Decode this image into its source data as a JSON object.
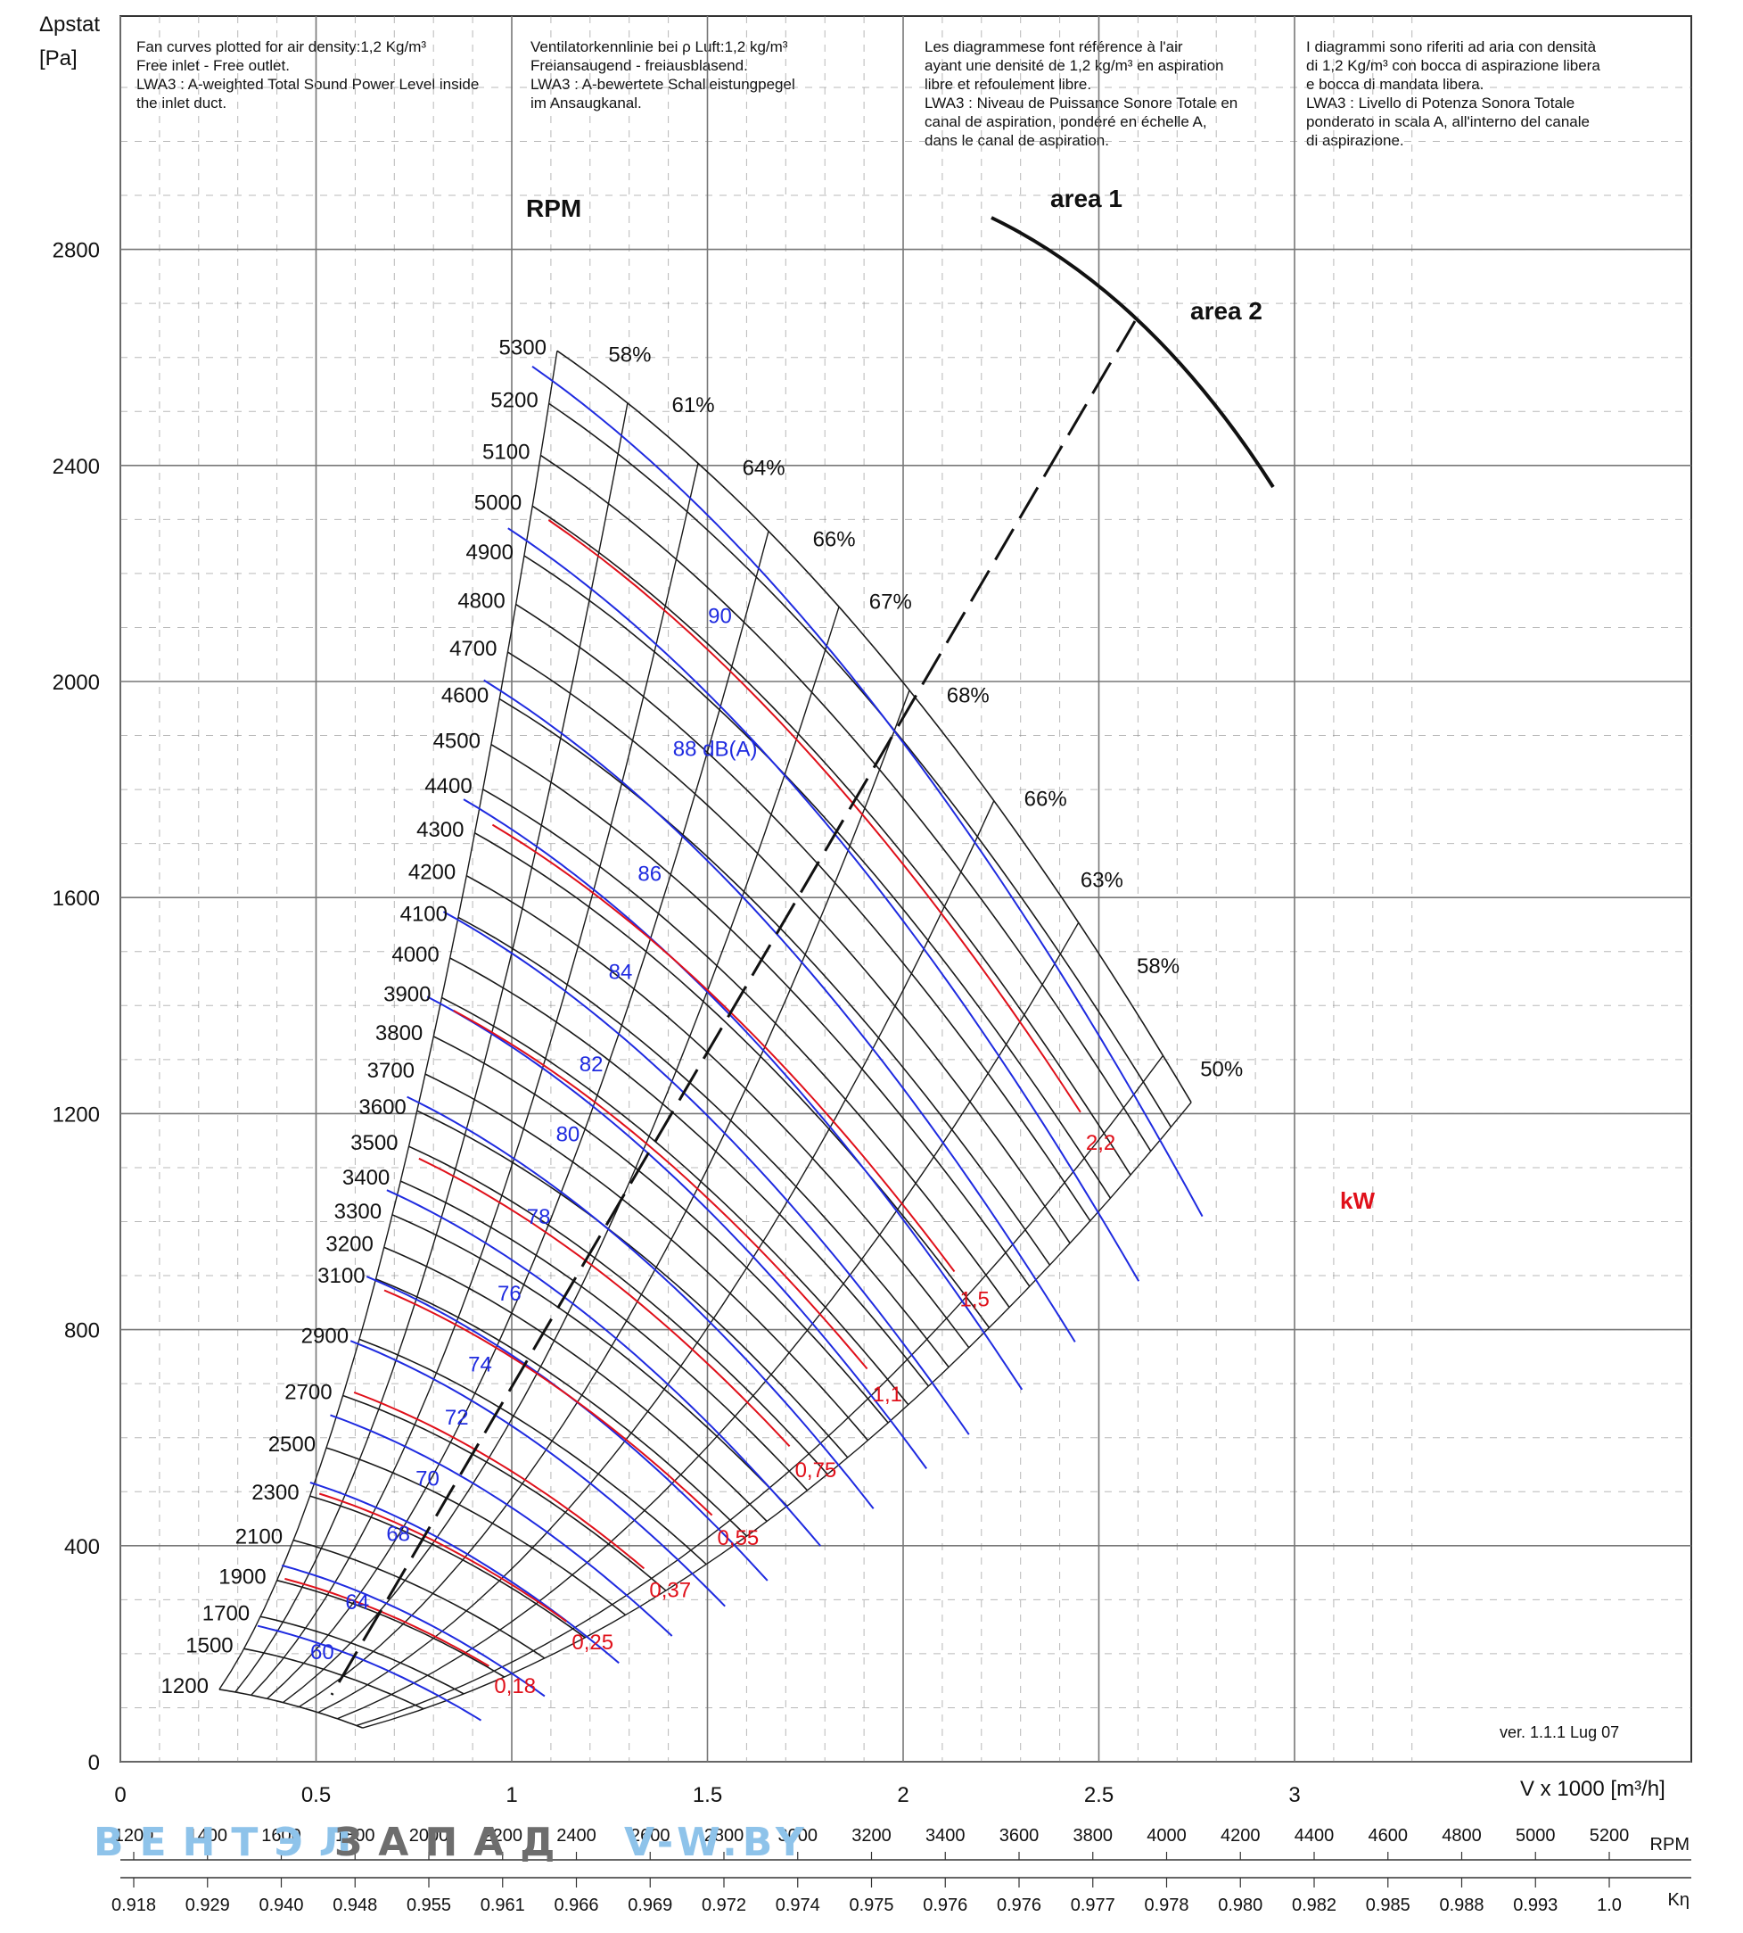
{
  "header": {
    "yaxis_title_line1": "Δpstat",
    "yaxis_title_line2": "[Pa]",
    "notes": [
      "Fan curves plotted for air density:1,2 Kg/m³\nFree inlet - Free outlet.\nLWA3 : A-weighted Total Sound Power Level inside\nthe inlet duct.",
      "Ventilatorkennlinie bei ρ Luft:1,2 kg/m³\nFreiansaugend - freiausblasend.\nLWA3 : A-bewertete Schalleistungpegel\nim Ansaugkanal.",
      "Les diagrammese font référence à l'air\nayant une densité de 1,2 kg/m³ en aspiration\nlibre et refoulement libre.\nLWA3 : Niveau de Puissance Sonore Totale en\ncanal de aspiration, pondéré en échelle A,\ndans le canal de aspiration.",
      "I diagrammi sono riferiti ad aria con densità\ndi 1,2 Kg/m³ con bocca di aspirazione libera\ne bocca di mandata libera.\nLWA3 : Livello di Potenza Sonora Totale\nponderato in scala A, all'interno del canale\ndi aspirazione."
    ],
    "version": "ver. 1.1.1 Lug 07",
    "xaxis_title": "V x 1000 [m³/h]"
  },
  "colors": {
    "rpm_curves": "#1a1a1a",
    "efficiency_rays": "#1a1a1a",
    "sound_curves": "#1f2be0",
    "power_curves": "#e0101a",
    "grid": "#8a8a8a",
    "watermark_light": "#8ec3ea",
    "watermark_dark": "#6d6d6d"
  },
  "chart_data": {
    "type": "line",
    "xlabel": "V x 1000 [m³/h]",
    "ylabel": "Δpstat [Pa]",
    "xlim": [
      0,
      3.35
    ],
    "ylim": [
      0,
      3200
    ],
    "x_ticks": [
      "0",
      "0.5",
      "1",
      "1.5",
      "2",
      "2.5",
      "3"
    ],
    "y_ticks": [
      "0",
      "400",
      "800",
      "1200",
      "1600",
      "2000",
      "2400",
      "2800"
    ],
    "grid": true,
    "rpm_label": "RPM",
    "rpm_curves": [
      1200,
      1500,
      1700,
      1900,
      2100,
      2300,
      2500,
      2700,
      2900,
      3100,
      3200,
      3300,
      3400,
      3500,
      3600,
      3700,
      3800,
      3900,
      4000,
      4100,
      4200,
      4300,
      4400,
      4500,
      4600,
      4700,
      4800,
      4900,
      5000,
      5100,
      5200,
      5300
    ],
    "efficiency_labels": [
      "58%",
      "61%",
      "64%",
      "66%",
      "67%",
      "68%",
      "66%",
      "63%",
      "58%",
      "50%"
    ],
    "sound_levels_label": "dB(A)",
    "sound_levels": [
      "60",
      "64",
      "68",
      "70",
      "72",
      "74",
      "76",
      "78",
      "80",
      "82",
      "84",
      "86",
      "88 dB(A)",
      "90"
    ],
    "power_label": "kW",
    "power_levels": [
      "0,18",
      "0,25",
      "0,37",
      "0,55",
      "0,75",
      "1,1",
      "1,5",
      "2,2"
    ],
    "areas": [
      "area 1",
      "area 2"
    ],
    "bottom_scale": {
      "rpm_label": "RPM",
      "rpm": [
        "1200",
        "1400",
        "1600",
        "1800",
        "2000",
        "2200",
        "2400",
        "2600",
        "2800",
        "3000",
        "3200",
        "3400",
        "3600",
        "3800",
        "4000",
        "4200",
        "4400",
        "4600",
        "4800",
        "5000",
        "5200"
      ],
      "k_label": "Kη",
      "k": [
        "0.918",
        "0.929",
        "0.940",
        "0.948",
        "0.955",
        "0.961",
        "0.966",
        "0.969",
        "0.972",
        "0.974",
        "0.975",
        "0.976",
        "0.976",
        "0.977",
        "0.978",
        "0.980",
        "0.982",
        "0.985",
        "0.988",
        "0.993",
        "1.0"
      ]
    }
  },
  "watermark": {
    "part1": "ВЕНТЭЛ",
    "part2": "ЗАПАД",
    "part3": "v-w.by"
  }
}
